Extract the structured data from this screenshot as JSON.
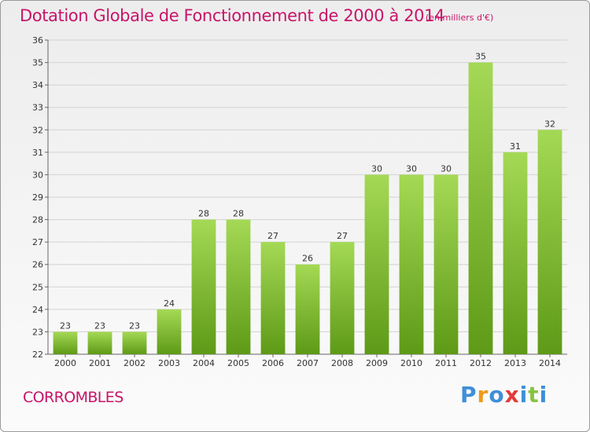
{
  "header": {
    "title": "Dotation Globale de Fonctionnement de 2000 à 2014",
    "subtitle": "(en milliers d'€)"
  },
  "footer": {
    "commune": "CORROMBLES",
    "brand": {
      "letters": [
        "P",
        "r",
        "o",
        "x",
        "i",
        "t",
        "i"
      ],
      "colors": [
        "#3f8fd8",
        "#ef9a1c",
        "#3f8fd8",
        "#e33a3a",
        "#3f8fd8",
        "#86c440",
        "#3f8fd8"
      ]
    }
  },
  "colors": {
    "bar_light": "#a4d955",
    "bar_dark": "#5e9a17",
    "grid": "#d2d2d2",
    "axis": "#666666",
    "accent": "#c81469"
  },
  "chart_data": {
    "type": "bar",
    "categories": [
      "2000",
      "2001",
      "2002",
      "2003",
      "2004",
      "2005",
      "2006",
      "2007",
      "2008",
      "2009",
      "2010",
      "2011",
      "2012",
      "2013",
      "2014"
    ],
    "values": [
      23,
      23,
      23,
      24,
      28,
      28,
      27,
      26,
      27,
      30,
      30,
      30,
      35,
      31,
      32
    ],
    "data_labels": [
      "23",
      "23",
      "23",
      "24",
      "28",
      "28",
      "27",
      "26",
      "27",
      "30",
      "30",
      "30",
      "35",
      "31",
      "32"
    ],
    "yticks": [
      "22",
      "23",
      "24",
      "25",
      "26",
      "27",
      "28",
      "29",
      "30",
      "31",
      "32",
      "33",
      "34",
      "35",
      "36"
    ],
    "title": "Dotation Globale de Fonctionnement de 2000 à 2014",
    "subtitle": "(en milliers d'€)",
    "xlabel": "",
    "ylabel": "",
    "ylim": [
      22,
      36
    ],
    "grid": true,
    "legend": "none"
  }
}
